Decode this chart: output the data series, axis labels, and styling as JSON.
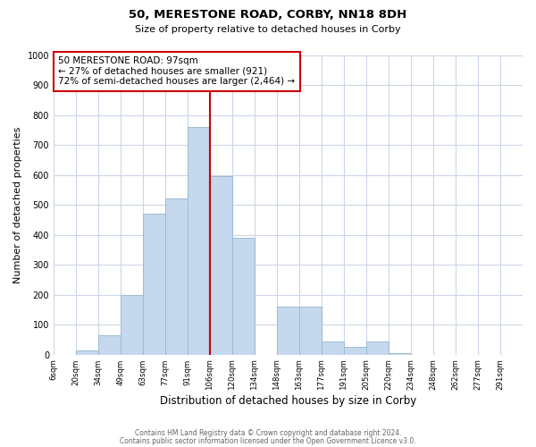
{
  "title": "50, MERESTONE ROAD, CORBY, NN18 8DH",
  "subtitle": "Size of property relative to detached houses in Corby",
  "xlabel": "Distribution of detached houses by size in Corby",
  "ylabel": "Number of detached properties",
  "bin_labels": [
    "6sqm",
    "20sqm",
    "34sqm",
    "49sqm",
    "63sqm",
    "77sqm",
    "91sqm",
    "106sqm",
    "120sqm",
    "134sqm",
    "148sqm",
    "163sqm",
    "177sqm",
    "191sqm",
    "205sqm",
    "220sqm",
    "234sqm",
    "248sqm",
    "262sqm",
    "277sqm",
    "291sqm"
  ],
  "bar_heights": [
    0,
    15,
    65,
    200,
    470,
    520,
    760,
    595,
    390,
    0,
    160,
    160,
    45,
    25,
    45,
    5,
    0,
    0,
    0,
    0,
    0
  ],
  "bar_color": "#c5d8ed",
  "bar_edge_color": "#9bbdd6",
  "vline_x_index": 7,
  "vline_color": "#cc0000",
  "annotation_text": "50 MERESTONE ROAD: 97sqm\n← 27% of detached houses are smaller (921)\n72% of semi-detached houses are larger (2,464) →",
  "annotation_box_edgecolor": "#cc0000",
  "annotation_box_facecolor": "#ffffff",
  "ylim": [
    0,
    1000
  ],
  "yticks": [
    0,
    100,
    200,
    300,
    400,
    500,
    600,
    700,
    800,
    900,
    1000
  ],
  "footer_line1": "Contains HM Land Registry data © Crown copyright and database right 2024.",
  "footer_line2": "Contains public sector information licensed under the Open Government Licence v3.0.",
  "bg_color": "#ffffff",
  "grid_color": "#ccd6e8"
}
